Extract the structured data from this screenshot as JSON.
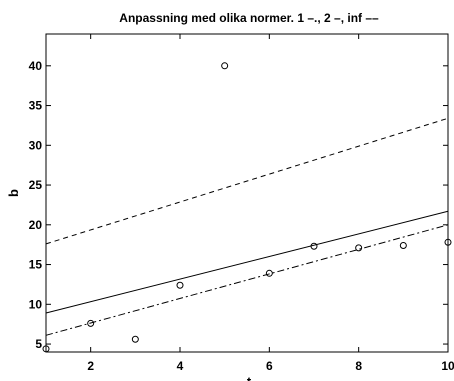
{
  "chart_data": {
    "type": "scatter",
    "title": "Anpassning med olika normer. 1 –., 2 –, inf ––",
    "xlabel": "t",
    "ylabel": "b",
    "xlim": [
      1,
      10
    ],
    "ylim": [
      4,
      44
    ],
    "xticks": [
      2,
      4,
      6,
      8,
      10
    ],
    "yticks": [
      5,
      10,
      15,
      20,
      25,
      30,
      35,
      40
    ],
    "grid": false,
    "legend": "none",
    "points": {
      "x": [
        1,
        2,
        3,
        4,
        5,
        6,
        7,
        8,
        9,
        10
      ],
      "y": [
        4.4,
        7.6,
        5.6,
        12.4,
        40.0,
        13.9,
        17.3,
        17.1,
        17.4,
        17.8
      ],
      "marker": "circle"
    },
    "series": [
      {
        "style": "dashdot",
        "x": [
          1,
          10
        ],
        "y": [
          6.1,
          20.0
        ]
      },
      {
        "style": "solid",
        "x": [
          1,
          10
        ],
        "y": [
          8.9,
          21.7
        ]
      },
      {
        "style": "dashed",
        "x": [
          1,
          10
        ],
        "y": [
          17.6,
          33.4
        ]
      }
    ],
    "colors": {
      "line": "#000000",
      "background": "#ffffff"
    }
  }
}
